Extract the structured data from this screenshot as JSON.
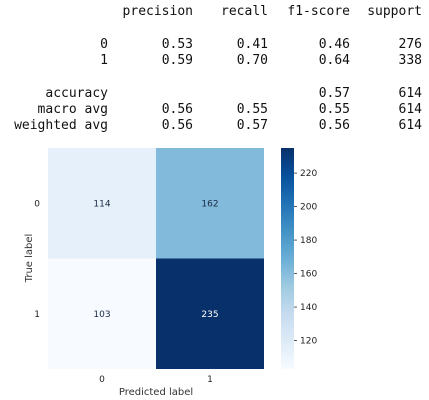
{
  "report": {
    "headers": [
      "precision",
      "recall",
      "f1-score",
      "support"
    ],
    "rows": [
      {
        "label": "0",
        "values": [
          "0.53",
          "0.41",
          "0.46",
          "276"
        ]
      },
      {
        "label": "1",
        "values": [
          "0.59",
          "0.70",
          "0.64",
          "338"
        ]
      },
      {
        "label": "accuracy",
        "values": [
          "",
          "",
          "0.57",
          "614"
        ]
      },
      {
        "label": "macro avg",
        "values": [
          "0.56",
          "0.55",
          "0.55",
          "614"
        ]
      },
      {
        "label": "weighted avg",
        "values": [
          "0.56",
          "0.57",
          "0.56",
          "614"
        ]
      }
    ]
  },
  "chart_data": {
    "type": "heatmap",
    "xlabel": "Predicted label",
    "ylabel": "True label",
    "x_categories": [
      "0",
      "1"
    ],
    "y_categories": [
      "0",
      "1"
    ],
    "values": [
      [
        114,
        162
      ],
      [
        103,
        235
      ]
    ],
    "colormap": "Blues",
    "colorbar": {
      "min": 103,
      "max": 235,
      "ticks": [
        120,
        140,
        160,
        180,
        200,
        220
      ]
    },
    "text_colors": {
      "light": "#ffffff",
      "dark": "#1a2a44"
    }
  }
}
